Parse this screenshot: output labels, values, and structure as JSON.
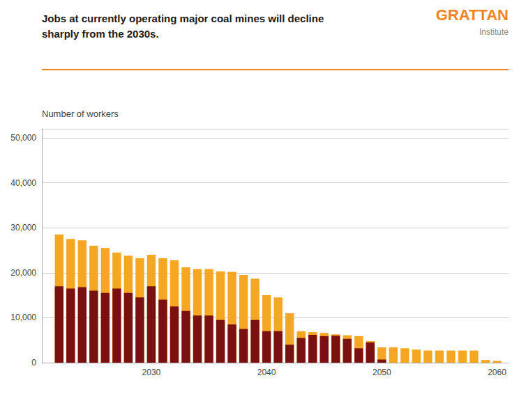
{
  "chart_data": {
    "type": "bar",
    "stacked": true,
    "title": "Jobs at currently operating major coal mines will decline\nsharply from the 2030s.",
    "ylabel": "Number of workers",
    "annotations": [
      {
        "text": "GRATTAN",
        "color": "#F5821F"
      },
      {
        "text": "Institute",
        "color": "#888888"
      }
    ],
    "x": [
      2022,
      2023,
      2024,
      2025,
      2026,
      2027,
      2028,
      2029,
      2030,
      2031,
      2032,
      2033,
      2034,
      2035,
      2036,
      2037,
      2038,
      2039,
      2040,
      2041,
      2042,
      2043,
      2044,
      2045,
      2046,
      2047,
      2048,
      2049,
      2050,
      2051,
      2052,
      2053,
      2054,
      2055,
      2056,
      2057,
      2058,
      2059,
      2060
    ],
    "series": [
      {
        "color": "#F5A623",
        "values": [
          28500,
          27500,
          27200,
          26000,
          25500,
          24500,
          23800,
          23200,
          24000,
          23200,
          22800,
          21200,
          20800,
          20800,
          20300,
          20200,
          19500,
          18700,
          15000,
          14500,
          11000,
          7000,
          6800,
          6600,
          6300,
          6100,
          5900,
          4800,
          3400,
          3400,
          3200,
          2900,
          2700,
          2700,
          2700,
          2700,
          2700,
          600,
          400
        ]
      },
      {
        "color": "#7B1010",
        "values": [
          17000,
          16500,
          16800,
          16000,
          15500,
          16500,
          15500,
          14500,
          17000,
          14000,
          12500,
          11500,
          10500,
          10500,
          9500,
          8500,
          7500,
          9500,
          7000,
          7000,
          4000,
          5500,
          6200,
          5900,
          6000,
          5300,
          3200,
          4500,
          700,
          0,
          0,
          0,
          0,
          0,
          0,
          0,
          0,
          0,
          0
        ]
      }
    ],
    "xlim": [
      2020.5,
      2061
    ],
    "xticks": [
      2030,
      2040,
      2050,
      2060
    ],
    "ylim": [
      0,
      52000
    ],
    "yticks": [
      0,
      {
        "value": 10000,
        "label": "10,000"
      },
      {
        "value": 20000,
        "label": "20,000"
      },
      {
        "value": 30000,
        "label": "30,000"
      },
      {
        "value": 40000,
        "label": "40,000"
      },
      {
        "value": 50000,
        "label": "50,000"
      }
    ],
    "grid": true
  }
}
